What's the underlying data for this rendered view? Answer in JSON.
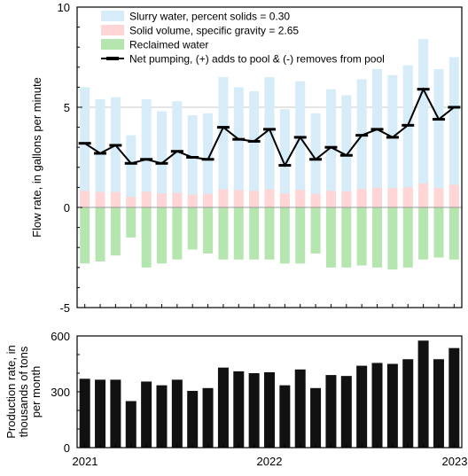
{
  "chart_data": [
    {
      "type": "bar",
      "panel": "top",
      "ylabel": "Flow rate, in gallons per minute",
      "ylim": [
        -5,
        10
      ],
      "yticks": [
        -5,
        0,
        5,
        10
      ],
      "grid": "horizontal at 5",
      "legend_placement": "top-left",
      "series": [
        {
          "name": "Slurry water, percent solids = 0.30",
          "kind": "bar",
          "color": "#d6ecf8",
          "values": [
            6.0,
            5.4,
            5.5,
            3.6,
            5.4,
            4.8,
            5.3,
            4.6,
            4.7,
            6.5,
            6.0,
            5.8,
            6.5,
            4.9,
            6.3,
            4.7,
            5.9,
            5.6,
            6.4,
            6.9,
            6.6,
            7.1,
            8.4,
            6.9,
            7.5
          ]
        },
        {
          "name": "Solid volume, specific gravity = 2.65",
          "kind": "bar",
          "color": "#ffd5d5",
          "values": [
            0.83,
            0.77,
            0.77,
            0.53,
            0.78,
            0.7,
            0.73,
            0.64,
            0.67,
            0.9,
            0.86,
            0.83,
            0.9,
            0.7,
            0.88,
            0.67,
            0.83,
            0.81,
            0.92,
            0.97,
            0.96,
            1.0,
            1.2,
            0.96,
            1.13
          ]
        },
        {
          "name": "Reclaimed water",
          "kind": "bar",
          "color": "#b5e6b0",
          "values": [
            -2.8,
            -2.7,
            -2.4,
            -1.5,
            -3.0,
            -2.8,
            -2.6,
            -2.1,
            -2.3,
            -2.6,
            -2.6,
            -2.6,
            -2.6,
            -2.8,
            -2.8,
            -2.3,
            -3.0,
            -3.0,
            -2.9,
            -3.0,
            -3.1,
            -3.0,
            -2.6,
            -2.5,
            -2.6
          ]
        },
        {
          "name": "Net pumping,  (+) adds to pool & (-) removes from pool",
          "kind": "line",
          "color": "#000000",
          "values": [
            3.2,
            2.7,
            3.1,
            2.2,
            2.4,
            2.2,
            2.8,
            2.5,
            2.4,
            4.0,
            3.4,
            3.3,
            3.9,
            2.1,
            3.5,
            2.4,
            3.0,
            2.6,
            3.6,
            3.9,
            3.5,
            4.1,
            5.9,
            4.4,
            5.0
          ]
        }
      ]
    },
    {
      "type": "bar",
      "panel": "bottom",
      "ylabel": "Production rate, in thousands of tons per month",
      "ylim": [
        0,
        600
      ],
      "yticks": [
        0,
        300,
        600
      ],
      "x_tick_labels": [
        "2021",
        "2022",
        "2023"
      ],
      "series": [
        {
          "kind": "bar",
          "color": "#111111",
          "values": [
            370,
            365,
            365,
            250,
            355,
            335,
            365,
            305,
            320,
            430,
            410,
            400,
            405,
            335,
            420,
            320,
            390,
            385,
            440,
            455,
            450,
            475,
            575,
            475,
            535
          ]
        }
      ]
    }
  ]
}
